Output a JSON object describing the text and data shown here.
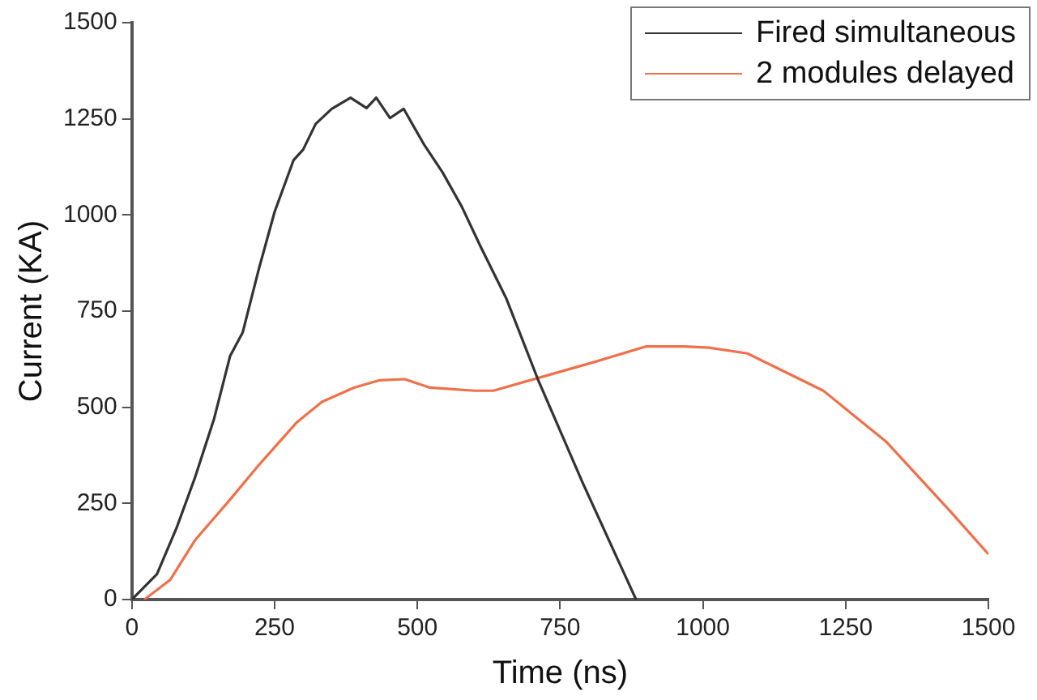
{
  "chart_data": {
    "type": "line",
    "xlabel": "Time (ns)",
    "ylabel": "Current (KA)",
    "xlim": [
      0,
      1500
    ],
    "xticks": [
      0,
      250,
      500,
      750,
      1000,
      1250,
      1500
    ],
    "ylim": [
      0,
      1500
    ],
    "yticks": [
      0,
      250,
      500,
      750,
      1000,
      1250,
      1500
    ],
    "grid": false,
    "legend": "top right",
    "marker": "none",
    "line_style": "solid",
    "series": [
      {
        "name": "Fired simultaneous",
        "color": "#333333",
        "x": [
          0,
          44,
          78,
          111,
          144,
          172,
          194,
          222,
          250,
          283,
          300,
          322,
          350,
          383,
          411,
          428,
          452,
          476,
          511,
          544,
          578,
          611,
          656,
          711,
          789,
          883
        ],
        "values": [
          0,
          66,
          185,
          319,
          470,
          633,
          694,
          857,
          1008,
          1142,
          1170,
          1237,
          1276,
          1305,
          1278,
          1305,
          1252,
          1276,
          1185,
          1111,
          1021,
          917,
          782,
          573,
          305,
          0
        ]
      },
      {
        "name": "2 modules delayed",
        "color": "#f0704a",
        "x": [
          22,
          67,
          111,
          172,
          222,
          289,
          333,
          389,
          433,
          478,
          522,
          600,
          633,
          711,
          811,
          900,
          967,
          1011,
          1078,
          1211,
          1322,
          1433,
          1500
        ],
        "values": [
          0,
          51,
          155,
          260,
          349,
          461,
          514,
          551,
          570,
          573,
          551,
          543,
          543,
          576,
          618,
          658,
          658,
          655,
          640,
          543,
          409,
          230,
          118
        ]
      }
    ]
  }
}
